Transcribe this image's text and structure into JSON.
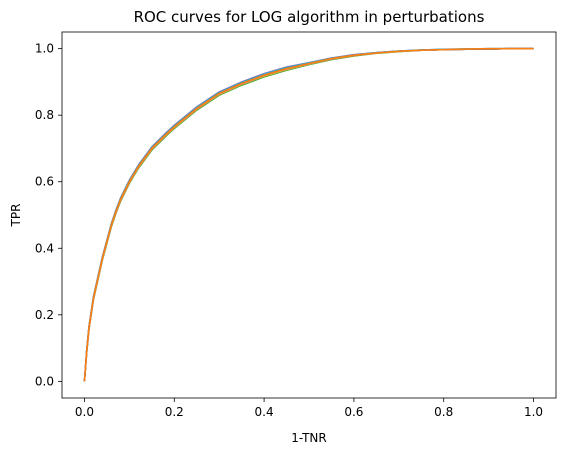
{
  "chart_data": {
    "type": "line",
    "title": "ROC curves for LOG algorithm in perturbations",
    "xlabel": "1-TNR",
    "ylabel": "TPR",
    "xlim": [
      -0.05,
      1.05
    ],
    "ylim": [
      -0.05,
      1.05
    ],
    "xticks": [
      0.0,
      0.2,
      0.4,
      0.6,
      0.8,
      1.0
    ],
    "xtick_labels": [
      "0.0",
      "0.2",
      "0.4",
      "0.6",
      "0.8",
      "1.0"
    ],
    "yticks": [
      0.0,
      0.2,
      0.4,
      0.6,
      0.8,
      1.0
    ],
    "ytick_labels": [
      "0.0",
      "0.2",
      "0.4",
      "0.6",
      "0.8",
      "1.0"
    ],
    "grid": false,
    "legend": "none",
    "series_colors": [
      "#1f77b4",
      "#2ca02c",
      "#9467bd",
      "#d62728",
      "#8c564b",
      "#bcbd22",
      "#17becf",
      "#e377c2",
      "#7f7f7f",
      "#ff7f0e"
    ],
    "x": [
      0.0,
      0.005,
      0.01,
      0.02,
      0.03,
      0.04,
      0.05,
      0.06,
      0.07,
      0.08,
      0.1,
      0.12,
      0.15,
      0.18,
      0.2,
      0.25,
      0.3,
      0.35,
      0.4,
      0.45,
      0.5,
      0.55,
      0.6,
      0.65,
      0.7,
      0.75,
      0.8,
      0.85,
      0.9,
      0.95,
      1.0
    ],
    "series": [
      {
        "values": [
          0.0,
          0.09,
          0.16,
          0.25,
          0.31,
          0.37,
          0.42,
          0.47,
          0.51,
          0.545,
          0.6,
          0.645,
          0.7,
          0.74,
          0.765,
          0.82,
          0.865,
          0.895,
          0.92,
          0.94,
          0.955,
          0.97,
          0.98,
          0.987,
          0.992,
          0.995,
          0.997,
          0.998,
          0.999,
          1.0,
          1.0
        ]
      },
      {
        "values": [
          0.0,
          0.085,
          0.155,
          0.245,
          0.305,
          0.365,
          0.415,
          0.465,
          0.505,
          0.54,
          0.595,
          0.64,
          0.695,
          0.735,
          0.76,
          0.815,
          0.86,
          0.89,
          0.915,
          0.935,
          0.952,
          0.967,
          0.978,
          0.986,
          0.991,
          0.995,
          0.997,
          0.998,
          0.999,
          1.0,
          1.0
        ]
      },
      {
        "values": [
          0.0,
          0.095,
          0.165,
          0.255,
          0.315,
          0.375,
          0.425,
          0.475,
          0.515,
          0.55,
          0.605,
          0.65,
          0.705,
          0.745,
          0.77,
          0.825,
          0.87,
          0.9,
          0.925,
          0.945,
          0.958,
          0.972,
          0.982,
          0.988,
          0.993,
          0.996,
          0.998,
          0.999,
          1.0,
          1.0,
          1.0
        ]
      },
      {
        "values": [
          0.0,
          0.088,
          0.158,
          0.248,
          0.308,
          0.368,
          0.418,
          0.468,
          0.508,
          0.543,
          0.598,
          0.643,
          0.698,
          0.738,
          0.763,
          0.818,
          0.863,
          0.893,
          0.918,
          0.938,
          0.954,
          0.969,
          0.979,
          0.987,
          0.992,
          0.995,
          0.997,
          0.998,
          0.999,
          1.0,
          1.0
        ]
      },
      {
        "values": [
          0.0,
          0.092,
          0.162,
          0.252,
          0.312,
          0.372,
          0.422,
          0.472,
          0.512,
          0.547,
          0.602,
          0.647,
          0.702,
          0.742,
          0.767,
          0.822,
          0.867,
          0.897,
          0.922,
          0.942,
          0.956,
          0.971,
          0.981,
          0.988,
          0.992,
          0.996,
          0.997,
          0.999,
          0.999,
          1.0,
          1.0
        ]
      },
      {
        "values": [
          0.0,
          0.087,
          0.157,
          0.247,
          0.307,
          0.367,
          0.417,
          0.467,
          0.507,
          0.542,
          0.597,
          0.642,
          0.697,
          0.737,
          0.762,
          0.817,
          0.862,
          0.892,
          0.917,
          0.937,
          0.953,
          0.968,
          0.979,
          0.986,
          0.991,
          0.995,
          0.997,
          0.998,
          0.999,
          1.0,
          1.0
        ]
      },
      {
        "values": [
          0.0,
          0.093,
          0.163,
          0.253,
          0.313,
          0.373,
          0.423,
          0.473,
          0.513,
          0.548,
          0.603,
          0.648,
          0.703,
          0.743,
          0.768,
          0.823,
          0.868,
          0.898,
          0.923,
          0.943,
          0.957,
          0.971,
          0.981,
          0.988,
          0.993,
          0.996,
          0.998,
          0.999,
          1.0,
          1.0,
          1.0
        ]
      },
      {
        "values": [
          0.0,
          0.089,
          0.159,
          0.249,
          0.309,
          0.369,
          0.419,
          0.469,
          0.509,
          0.544,
          0.599,
          0.644,
          0.699,
          0.739,
          0.764,
          0.819,
          0.864,
          0.894,
          0.919,
          0.939,
          0.954,
          0.969,
          0.98,
          0.987,
          0.992,
          0.995,
          0.997,
          0.998,
          0.999,
          1.0,
          1.0
        ]
      },
      {
        "values": [
          0.0,
          0.091,
          0.161,
          0.251,
          0.311,
          0.371,
          0.421,
          0.471,
          0.511,
          0.546,
          0.601,
          0.646,
          0.701,
          0.741,
          0.766,
          0.821,
          0.866,
          0.896,
          0.921,
          0.941,
          0.955,
          0.97,
          0.98,
          0.987,
          0.992,
          0.995,
          0.997,
          0.998,
          0.999,
          1.0,
          1.0
        ]
      },
      {
        "values": [
          0.0,
          0.09,
          0.16,
          0.25,
          0.31,
          0.37,
          0.42,
          0.47,
          0.51,
          0.545,
          0.6,
          0.645,
          0.7,
          0.74,
          0.765,
          0.82,
          0.865,
          0.895,
          0.92,
          0.94,
          0.955,
          0.97,
          0.98,
          0.987,
          0.992,
          0.995,
          0.997,
          0.999,
          1.0,
          1.0,
          1.0
        ]
      }
    ]
  }
}
